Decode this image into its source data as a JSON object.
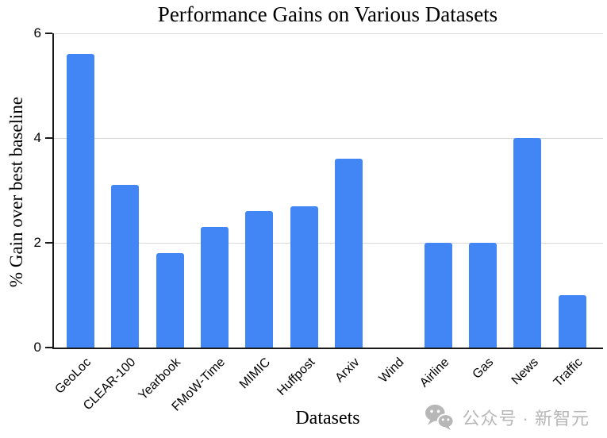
{
  "chart_data": {
    "type": "bar",
    "title": "Performance Gains on Various Datasets",
    "xlabel": "Datasets",
    "ylabel": "% Gain over best baseline",
    "categories": [
      "GeoLoc",
      "CLEAR-100",
      "Yearbook",
      "FMoW-Time",
      "MIMIC",
      "Huffpost",
      "Arxiv",
      "Wind",
      "Airline",
      "Gas",
      "News",
      "Traffic"
    ],
    "values": [
      5.6,
      3.1,
      1.8,
      2.3,
      2.6,
      2.7,
      3.6,
      0,
      2.0,
      2.0,
      4.0,
      1.0
    ],
    "ylim": [
      0,
      6
    ],
    "yticks": [
      0,
      2,
      4,
      6
    ],
    "grid": true,
    "legend": "none",
    "bar_color": "#4285F4",
    "gridline_color": "#d9d9d9",
    "axis_color": "#1a1a1a"
  },
  "watermark": {
    "text": "公众号 · 新智元",
    "icon": "wechat-icon",
    "color": "#b7b7b7"
  }
}
